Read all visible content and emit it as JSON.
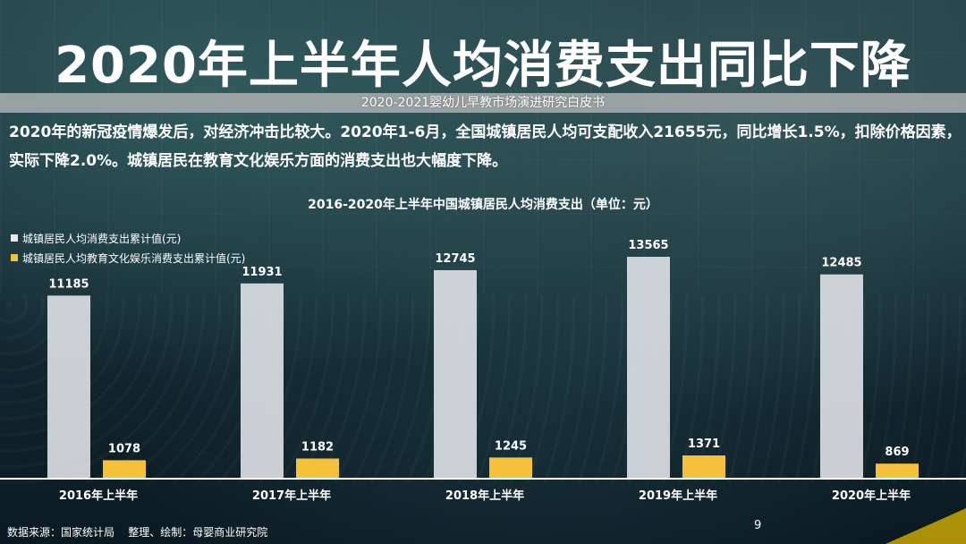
{
  "slide": {
    "title": "2020年上半年人均消费支出同比下降",
    "subtitle": "2020-2021婴幼儿早教市场演进研究白皮书",
    "intro": "2020年的新冠疫情爆发后，对经济冲击比较大。2020年1-6月，全国城镇居民人均可支配收入21655元，同比增长1.5%，扣除价格因素，实际下降2.0%。城镇居民在教育文化娱乐方面的消费支出也大幅度下降。",
    "footer": "数据来源：国家统计局    整理、绘制：母婴商业研究院",
    "page_number": "9"
  },
  "colors": {
    "series_total": "#e5e7ea",
    "series_education": "#f3c13a",
    "text": "#ffffff"
  },
  "chart_data": {
    "type": "bar",
    "title": "2016-2020年上半年中国城镇居民人均消费支出（单位：元）",
    "categories": [
      "2016年上半年",
      "2017年上半年",
      "2018年上半年",
      "2019年上半年",
      "2020年上半年"
    ],
    "series": [
      {
        "name": "城镇居民人均消费支出累计值(元)",
        "values": [
          11185,
          11931,
          12745,
          13565,
          12485
        ]
      },
      {
        "name": "城镇居民人均教育文化娱乐消费支出累计值(元)",
        "values": [
          1078,
          1182,
          1245,
          1371,
          869
        ]
      }
    ],
    "ylim": [
      0,
      14500
    ],
    "grid": false,
    "legend": "top-left",
    "xlabel": "",
    "ylabel": ""
  }
}
